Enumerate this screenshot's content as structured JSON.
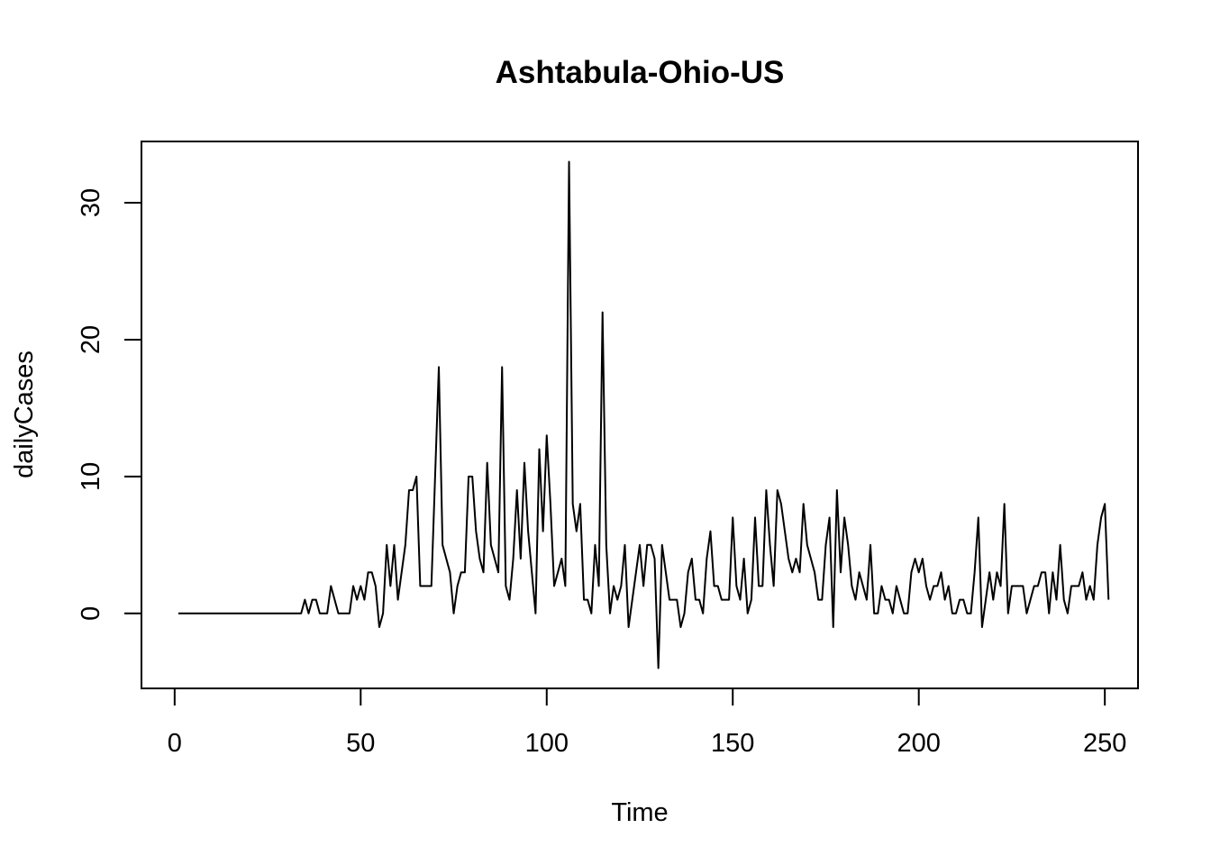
{
  "chart_data": {
    "type": "line",
    "title": "Ashtabula-Ohio-US",
    "xlabel": "Time",
    "ylabel": "dailyCases",
    "xlim": [
      -8.92,
      258.92
    ],
    "ylim": [
      -5.48,
      34.48
    ],
    "x_ticks": [
      0,
      50,
      100,
      150,
      200,
      250
    ],
    "x_tick_labels": [
      "0",
      "50",
      "100",
      "150",
      "200",
      "250"
    ],
    "y_ticks": [
      0,
      10,
      20,
      30
    ],
    "y_tick_labels": [
      "0",
      "10",
      "20",
      "30"
    ],
    "grid": false,
    "legend": "none",
    "x_start": 1,
    "x_step": 1,
    "values": [
      0,
      0,
      0,
      0,
      0,
      0,
      0,
      0,
      0,
      0,
      0,
      0,
      0,
      0,
      0,
      0,
      0,
      0,
      0,
      0,
      0,
      0,
      0,
      0,
      0,
      0,
      0,
      0,
      0,
      0,
      0,
      0,
      0,
      0,
      1,
      0,
      1,
      1,
      0,
      0,
      0,
      2,
      1,
      0,
      0,
      0,
      0,
      2,
      1,
      2,
      1,
      3,
      3,
      2,
      -1,
      0,
      5,
      2,
      5,
      1,
      3,
      5,
      9,
      9,
      10,
      2,
      2,
      2,
      2,
      10,
      18,
      5,
      4,
      3,
      0,
      2,
      3,
      3,
      10,
      10,
      6,
      4,
      3,
      11,
      5,
      4,
      3,
      18,
      2,
      1,
      4,
      9,
      4,
      11,
      6,
      3,
      0,
      12,
      6,
      13,
      8,
      2,
      3,
      4,
      2,
      33,
      8,
      6,
      8,
      1,
      1,
      0,
      5,
      2,
      22,
      5,
      0,
      2,
      1,
      2,
      5,
      -1,
      1,
      3,
      5,
      2,
      5,
      5,
      4,
      -4,
      5,
      3,
      1,
      1,
      1,
      -1,
      0,
      3,
      4,
      1,
      1,
      0,
      4,
      6,
      2,
      2,
      1,
      1,
      1,
      7,
      2,
      1,
      4,
      0,
      1,
      7,
      2,
      2,
      9,
      5,
      2,
      9,
      8,
      6,
      4,
      3,
      4,
      3,
      8,
      5,
      4,
      3,
      1,
      1,
      5,
      7,
      -1,
      9,
      3,
      7,
      5,
      2,
      1,
      3,
      2,
      1,
      5,
      0,
      0,
      2,
      1,
      1,
      0,
      2,
      1,
      0,
      0,
      3,
      4,
      3,
      4,
      2,
      1,
      2,
      2,
      3,
      1,
      2,
      0,
      0,
      1,
      1,
      0,
      0,
      3,
      7,
      -1,
      1,
      3,
      1,
      3,
      2,
      8,
      0,
      2,
      2,
      2,
      2,
      0,
      1,
      2,
      2,
      3,
      3,
      0,
      3,
      1,
      5,
      1,
      0,
      2,
      2,
      2,
      3,
      1,
      2,
      1,
      5,
      7,
      8,
      1
    ]
  }
}
